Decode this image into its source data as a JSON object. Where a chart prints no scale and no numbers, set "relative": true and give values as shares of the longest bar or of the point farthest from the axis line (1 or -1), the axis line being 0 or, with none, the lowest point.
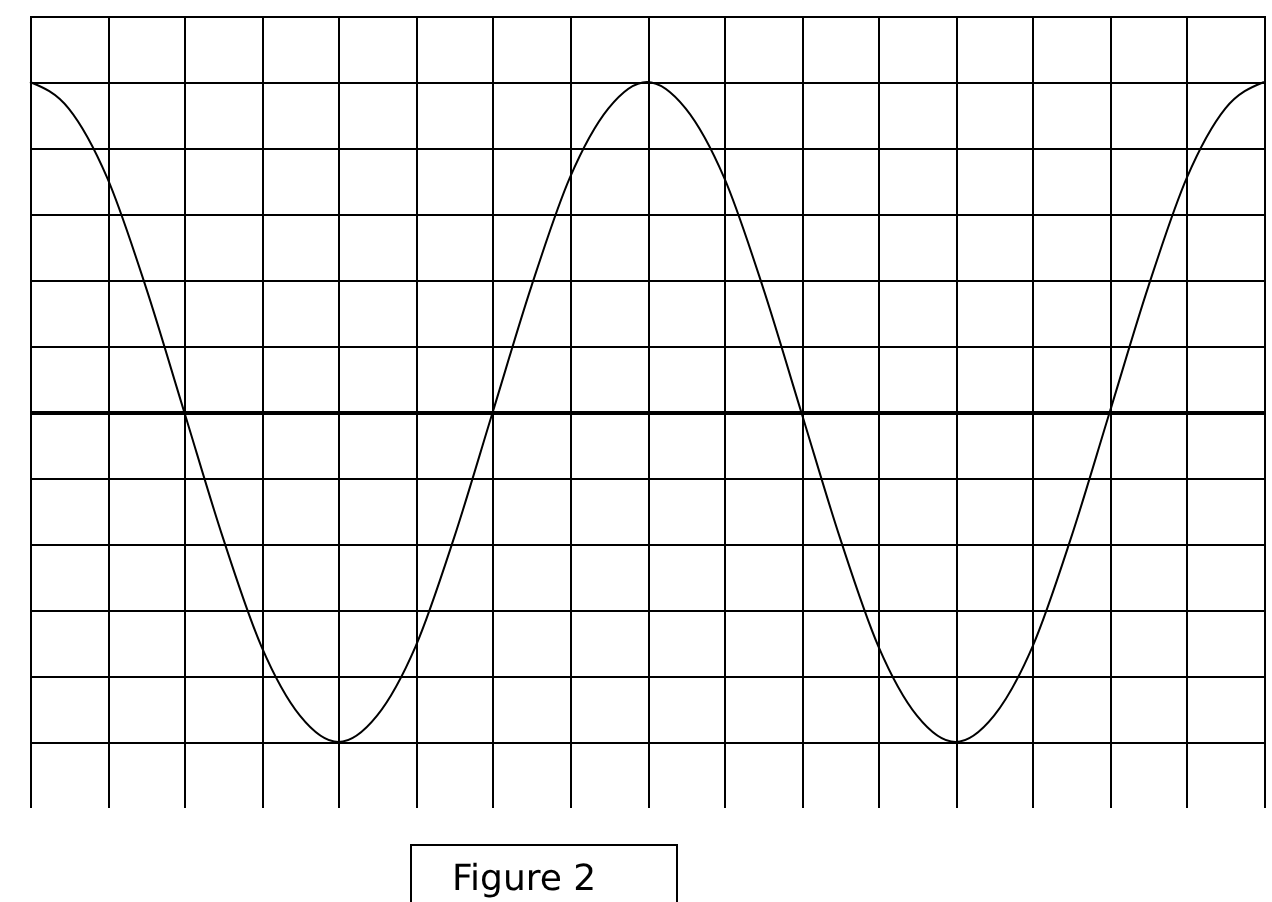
{
  "chart_data": {
    "type": "line",
    "relative": true,
    "grid": true,
    "marker": "none",
    "line_style": "solid",
    "categories": [
      null,
      null,
      null,
      null,
      null,
      null,
      null,
      null,
      null,
      null,
      null,
      null,
      null,
      null,
      null,
      null,
      null,
      null,
      null,
      null,
      null,
      null,
      null,
      null,
      null,
      null,
      null,
      null,
      null,
      null,
      null,
      null,
      null
    ],
    "series": [
      {
        "color": "#000000",
        "values": [
          1,
          0.92,
          0.71,
          0.38,
          0,
          -0.38,
          -0.71,
          -0.92,
          -1,
          -0.92,
          -0.71,
          -0.38,
          0,
          0.38,
          0.71,
          0.92,
          1,
          0.92,
          0.71,
          0.38,
          0,
          -0.38,
          -0.71,
          -0.92,
          -1,
          -0.92,
          -0.71,
          -0.38,
          0,
          0.38,
          0.71,
          0.92,
          1
        ]
      }
    ],
    "annotations": [
      "Figure 2"
    ]
  }
}
